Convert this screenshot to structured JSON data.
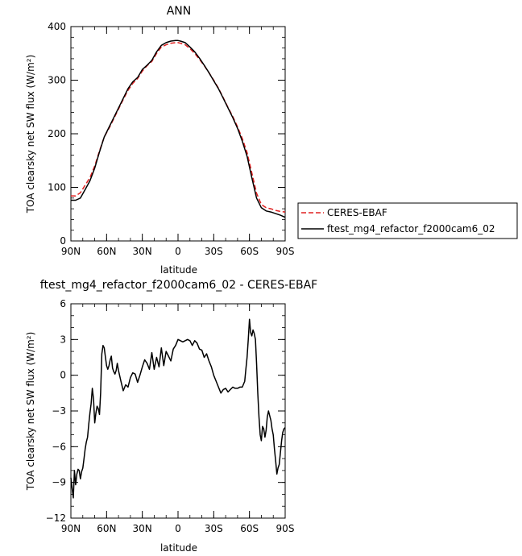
{
  "chart_data": [
    {
      "type": "line",
      "title": "ANN",
      "xlabel": "latitude",
      "ylabel": "TOA clearsky net SW flux (W/m²)",
      "xlim": [
        90,
        -90
      ],
      "ylim": [
        0,
        400
      ],
      "xticks": [
        90,
        60,
        30,
        0,
        -30,
        -60,
        -90
      ],
      "xtick_labels": [
        "90N",
        "60N",
        "30N",
        "0",
        "30S",
        "60S",
        "90S"
      ],
      "yticks": [
        0,
        100,
        200,
        300,
        400
      ],
      "ytick_labels": [
        "0",
        "100",
        "200",
        "300",
        "400"
      ],
      "grid": false,
      "legend_position": "right",
      "series": [
        {
          "name": "CERES-EBAF",
          "color": "#e02020",
          "dash": "dashed",
          "x": [
            90,
            86,
            82,
            78,
            74,
            70,
            66,
            62,
            58,
            54,
            50,
            46,
            42,
            38,
            34,
            30,
            26,
            22,
            18,
            14,
            10,
            6,
            2,
            0,
            -2,
            -6,
            -10,
            -14,
            -18,
            -22,
            -26,
            -30,
            -34,
            -38,
            -42,
            -46,
            -50,
            -54,
            -58,
            -62,
            -66,
            -70,
            -74,
            -78,
            -82,
            -86,
            -90
          ],
          "y": [
            84,
            84,
            90,
            104,
            118,
            140,
            168,
            194,
            210,
            228,
            246,
            264,
            281,
            294,
            303,
            317,
            327,
            335,
            350,
            362,
            366,
            369,
            370,
            370,
            369,
            366,
            359,
            350,
            339,
            327,
            314,
            300,
            285,
            267,
            249,
            232,
            213,
            191,
            165,
            127,
            89,
            68,
            62,
            60,
            57,
            55,
            54
          ]
        },
        {
          "name": "ftest_mg4_refactor_f2000cam6_02",
          "color": "#000000",
          "dash": "solid",
          "x": [
            90,
            86,
            82,
            78,
            74,
            70,
            66,
            62,
            58,
            54,
            50,
            46,
            42,
            38,
            34,
            30,
            26,
            22,
            18,
            14,
            10,
            6,
            2,
            0,
            -2,
            -6,
            -10,
            -14,
            -18,
            -22,
            -26,
            -30,
            -34,
            -38,
            -42,
            -46,
            -50,
            -54,
            -58,
            -62,
            -66,
            -70,
            -74,
            -78,
            -82,
            -86,
            -90
          ],
          "y": [
            76,
            76,
            80,
            96,
            112,
            136,
            166,
            194,
            212,
            230,
            248,
            266,
            284,
            297,
            305,
            320,
            328,
            337,
            353,
            365,
            370,
            373,
            374,
            374,
            373,
            370,
            362,
            353,
            341,
            328,
            314,
            299,
            284,
            266,
            248,
            230,
            210,
            186,
            158,
            118,
            80,
            62,
            56,
            54,
            51,
            48,
            44
          ]
        }
      ]
    },
    {
      "type": "line",
      "title": "ftest_mg4_refactor_f2000cam6_02 - CERES-EBAF",
      "xlabel": "latitude",
      "ylabel": "TOA clearsky net SW flux (W/m²)",
      "xlim": [
        90,
        -90
      ],
      "ylim": [
        -12,
        6
      ],
      "xticks": [
        90,
        60,
        30,
        0,
        -30,
        -60,
        -90
      ],
      "xtick_labels": [
        "90N",
        "60N",
        "30N",
        "0",
        "30S",
        "60S",
        "90S"
      ],
      "yticks": [
        -12,
        -9,
        -6,
        -3,
        0,
        3,
        6
      ],
      "ytick_labels": [
        "−12",
        "−9",
        "−6",
        "−3",
        "0",
        "3",
        "6"
      ],
      "grid": false,
      "series": [
        {
          "color": "#000000",
          "x": [
            90,
            89,
            88,
            87,
            86,
            85,
            84,
            83,
            82,
            81,
            80,
            79,
            78,
            77,
            76,
            75,
            74,
            73,
            72,
            71,
            70,
            69,
            68,
            67,
            66,
            65,
            64,
            63,
            62,
            61,
            60,
            59,
            58,
            57,
            56,
            55,
            54,
            53,
            52,
            51,
            50,
            48,
            46,
            44,
            42,
            40,
            38,
            36,
            34,
            32,
            30,
            28,
            26,
            24,
            22,
            20,
            18,
            16,
            14,
            12,
            10,
            8,
            6,
            4,
            2,
            0,
            -2,
            -4,
            -6,
            -8,
            -10,
            -12,
            -14,
            -16,
            -18,
            -20,
            -22,
            -24,
            -26,
            -28,
            -30,
            -32,
            -34,
            -36,
            -38,
            -40,
            -42,
            -44,
            -46,
            -48,
            -50,
            -52,
            -54,
            -56,
            -57,
            -58,
            -59,
            -60,
            -61,
            -62,
            -63,
            -64,
            -65,
            -66,
            -67,
            -68,
            -69,
            -70,
            -71,
            -72,
            -73,
            -74,
            -75,
            -76,
            -77,
            -78,
            -79,
            -80,
            -81,
            -82,
            -83,
            -84,
            -85,
            -86,
            -87,
            -88,
            -89,
            -90
          ],
          "y": [
            -8.6,
            -9.5,
            -10.3,
            -8.0,
            -9.2,
            -8.3,
            -7.9,
            -8.0,
            -8.7,
            -8.1,
            -7.8,
            -7.0,
            -6.2,
            -5.6,
            -5.2,
            -4.1,
            -3.2,
            -2.4,
            -1.1,
            -2.0,
            -4.0,
            -3.2,
            -2.6,
            -2.8,
            -3.3,
            -1.5,
            1.8,
            2.5,
            2.3,
            1.5,
            0.8,
            0.5,
            0.8,
            1.3,
            1.6,
            0.6,
            0.3,
            0.1,
            0.4,
            1.0,
            0.4,
            -0.5,
            -1.3,
            -0.8,
            -1.0,
            -0.2,
            0.2,
            0.1,
            -0.6,
            0.0,
            0.7,
            1.3,
            1.0,
            0.5,
            1.9,
            0.5,
            1.5,
            0.7,
            2.3,
            0.8,
            2.0,
            1.6,
            1.2,
            2.2,
            2.5,
            3.0,
            2.9,
            2.8,
            2.9,
            3.0,
            2.9,
            2.5,
            2.9,
            2.7,
            2.2,
            2.1,
            1.5,
            1.8,
            1.2,
            0.7,
            0.0,
            -0.5,
            -1.0,
            -1.5,
            -1.2,
            -1.1,
            -1.4,
            -1.2,
            -1.0,
            -1.1,
            -1.1,
            -1.0,
            -1.0,
            -0.5,
            0.5,
            1.5,
            3.0,
            4.7,
            3.6,
            3.3,
            3.8,
            3.5,
            3.0,
            1.0,
            -1.5,
            -3.5,
            -5.0,
            -5.5,
            -4.3,
            -4.5,
            -5.2,
            -4.6,
            -3.5,
            -3.0,
            -3.4,
            -3.8,
            -4.5,
            -5.0,
            -6.2,
            -7.2,
            -8.3,
            -7.8,
            -7.5,
            -6.5,
            -5.5,
            -4.8,
            -4.5,
            -4.4
          ]
        }
      ]
    }
  ]
}
